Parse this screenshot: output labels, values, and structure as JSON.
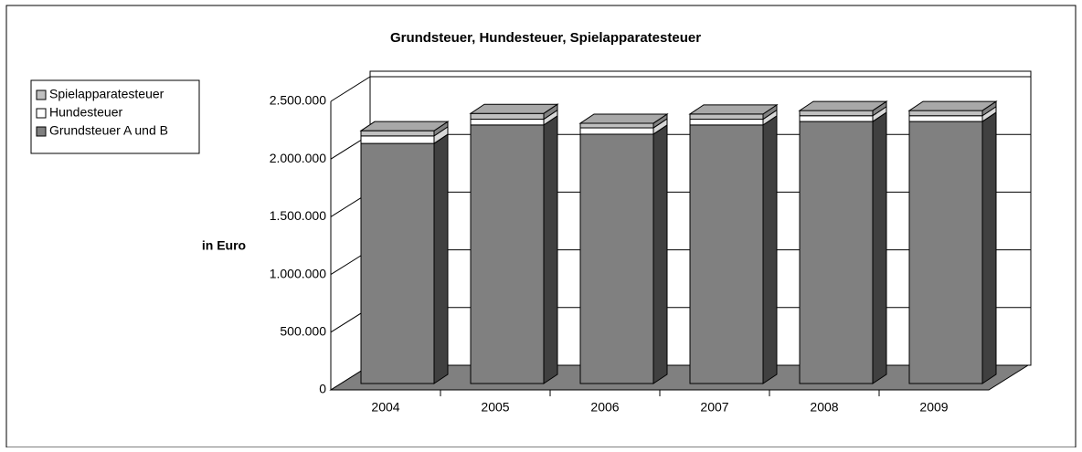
{
  "chart_data": {
    "type": "bar3d_stacked",
    "title": "Grundsteuer, Hundesteuer, Spielapparatesteuer",
    "y_label": "in Euro",
    "categories": [
      "2004",
      "2005",
      "2006",
      "2007",
      "2008",
      "2009"
    ],
    "series": [
      {
        "name": "Grundsteuer A und B",
        "color": "#808080",
        "values": [
          2080000,
          2240000,
          2160000,
          2240000,
          2270000,
          2270000
        ]
      },
      {
        "name": "Hundesteuer",
        "color": "#ffffff",
        "values": [
          65000,
          50000,
          55000,
          50000,
          50000,
          50000
        ]
      },
      {
        "name": "Spielapparatesteuer",
        "color": "#c0c0c0",
        "values": [
          45000,
          50000,
          40000,
          45000,
          45000,
          45000
        ]
      }
    ],
    "ylim": [
      0,
      2500000
    ],
    "yticks": [
      0,
      {
        "value": 500000,
        "label": "500.000"
      },
      {
        "value": 1000000,
        "label": "1.000.000"
      },
      {
        "value": 1500000,
        "label": "1.500.000"
      },
      {
        "value": 2000000,
        "label": "2.000.000"
      },
      {
        "value": 2500000,
        "label": "2.500.000"
      }
    ],
    "grid": true,
    "legend": "left"
  }
}
